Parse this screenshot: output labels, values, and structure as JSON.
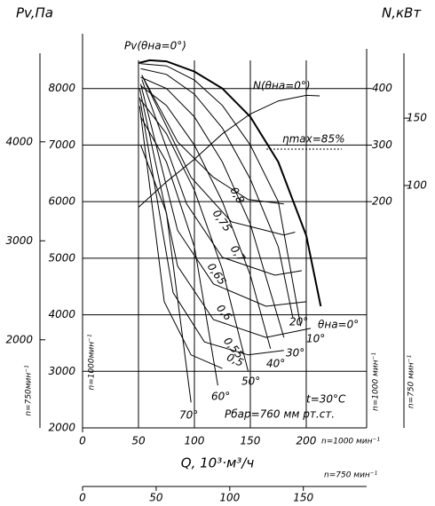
{
  "chart_data": {
    "type": "line",
    "y_label": "Pv,Па",
    "y2_label": "N,кВт",
    "x_label": "Q, 10³·м³/ч",
    "n_labels": {
      "x": "n=1000 мин⁻¹",
      "y": "n=1000мин⁻¹",
      "y2": "n=1000 мин⁻¹"
    },
    "xlim": [
      0,
      254
    ],
    "xticks": [
      0,
      50,
      100,
      150,
      200
    ],
    "ylim": [
      2000,
      9000
    ],
    "yticks": [
      2000,
      3000,
      4000,
      5000,
      6000,
      7000,
      8000
    ],
    "y2lim": [
      -200,
      500
    ],
    "y2ticks": [
      200,
      300,
      400
    ],
    "grid": true,
    "axes_750": {
      "x_label": "n=750 мин⁻¹",
      "xlim": [
        0,
        193
      ],
      "xticks": [
        0,
        50,
        100,
        150
      ],
      "y_label": "n=750мин⁻¹",
      "ylim": [
        1110,
        5110
      ],
      "yticks": [
        2000,
        3000,
        4000
      ],
      "y2_label": "n=750 мин⁻¹",
      "y2lim": [
        -80,
        214
      ],
      "y2ticks": [
        100,
        150
      ]
    },
    "series": [
      {
        "name": "θна=0°",
        "color": "#000",
        "line_width": 2,
        "x": [
          50,
          60,
          75,
          100,
          125,
          150,
          175,
          200,
          213
        ],
        "values": [
          8450,
          8500,
          8480,
          8300,
          8000,
          7500,
          6700,
          5400,
          4150
        ]
      },
      {
        "name": "10°",
        "color": "#000",
        "line_width": 1,
        "x": [
          52,
          75,
          100,
          125,
          150,
          175,
          195
        ],
        "values": [
          8440,
          8400,
          8150,
          7700,
          7000,
          6000,
          3800
        ]
      },
      {
        "name": "20°",
        "color": "#000",
        "line_width": 1,
        "x": [
          52,
          75,
          100,
          125,
          150,
          175,
          188
        ],
        "values": [
          8350,
          8250,
          7900,
          7300,
          6400,
          5200,
          3950
        ]
      },
      {
        "name": "30°",
        "color": "#000",
        "line_width": 1,
        "x": [
          52,
          75,
          100,
          125,
          150,
          180
        ],
        "values": [
          8200,
          8000,
          7500,
          6700,
          5600,
          3600
        ]
      },
      {
        "name": "40°",
        "color": "#000",
        "line_width": 1,
        "x": [
          52,
          75,
          100,
          125,
          150,
          168
        ],
        "values": [
          8050,
          7700,
          7000,
          6000,
          4700,
          3400
        ]
      },
      {
        "name": "50°",
        "color": "#000",
        "line_width": 1,
        "x": [
          52,
          75,
          100,
          125,
          148
        ],
        "values": [
          7800,
          7200,
          6200,
          4800,
          3000
        ]
      },
      {
        "name": "60°",
        "color": "#000",
        "line_width": 1,
        "x": [
          52,
          75,
          100,
          121
        ],
        "values": [
          7500,
          6700,
          5200,
          2750
        ]
      },
      {
        "name": "70°",
        "color": "#000",
        "line_width": 1,
        "x": [
          52,
          75,
          97
        ],
        "values": [
          7000,
          5800,
          2450
        ]
      },
      {
        "name": "N(θна=0°)",
        "color": "#000",
        "line_width": 1,
        "axis": "y2",
        "x": [
          50,
          75,
          100,
          125,
          150,
          175,
          200,
          212
        ],
        "values": [
          190,
          235,
          275,
          320,
          355,
          378,
          388,
          387
        ]
      },
      {
        "name": "0,8",
        "color": "#000",
        "line_width": 1,
        "x": [
          53,
          85,
          117,
          148,
          180
        ],
        "values": [
          8235,
          7057,
          6430,
          6037,
          5960
        ]
      },
      {
        "name": "0,75",
        "color": "#000",
        "line_width": 1,
        "x": [
          53,
          97,
          133,
          180,
          190
        ],
        "values": [
          8235,
          6430,
          5645,
          5410,
          5460
        ]
      },
      {
        "name": "0,7",
        "color": "#000",
        "line_width": 1,
        "x": [
          53,
          93,
          125,
          172,
          196
        ],
        "values": [
          8160,
          5960,
          5015,
          4700,
          4780
        ]
      },
      {
        "name": "0,65",
        "color": "#000",
        "line_width": 1,
        "x": [
          52,
          85,
          117,
          164,
          200
        ],
        "values": [
          8080,
          5490,
          4545,
          4150,
          4230
        ]
      },
      {
        "name": "0,6",
        "color": "#000",
        "line_width": 1,
        "x": [
          51,
          85,
          117,
          164,
          204
        ],
        "values": [
          8000,
          4860,
          3915,
          3600,
          3760
        ]
      },
      {
        "name": "0,55",
        "color": "#000",
        "line_width": 1,
        "x": [
          51,
          81,
          109,
          148,
          180
        ],
        "values": [
          7840,
          4390,
          3520,
          3290,
          3370
        ]
      },
      {
        "name": "0,5",
        "color": "#000",
        "line_width": 1,
        "x": [
          51,
          73,
          97,
          125
        ],
        "values": [
          7690,
          4230,
          3290,
          3050
        ]
      }
    ],
    "annotations": [
      "Pv(θна=0°)",
      "ηmax=85%",
      "t=30°C",
      "Pбар=760 мм рт.ст."
    ]
  }
}
